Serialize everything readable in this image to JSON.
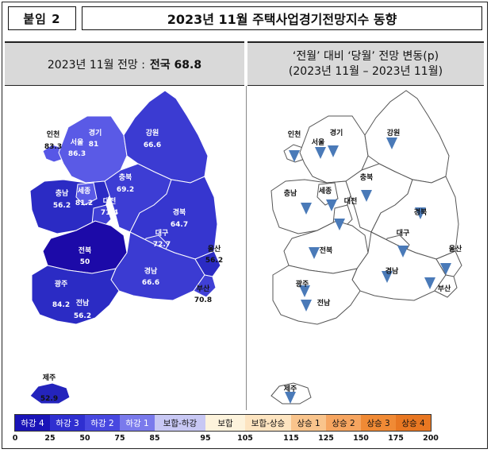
{
  "header": {
    "tag": "붙임 2",
    "title": "2023년 11월 주택사업경기전망지수 동향"
  },
  "left_panel": {
    "heading_prefix": "2023년 11월 전망 :",
    "heading_national": "전국 68.8"
  },
  "right_panel": {
    "heading_line1": "‘전월’ 대비 ‘당월’ 전망 변동(p)",
    "heading_line2": "(2023년 11월 – 2023년 11월)"
  },
  "regions": [
    {
      "key": "incheon",
      "name": "인천",
      "value": "83.3",
      "trend": "down",
      "color": "#5757e6"
    },
    {
      "key": "seoul",
      "name": "서울",
      "value": "86.3",
      "trend": "down",
      "color": "#7070e8"
    },
    {
      "key": "gyeonggi",
      "name": "경기",
      "value": "81",
      "trend": "down",
      "color": "#5a5ae6"
    },
    {
      "key": "gangwon",
      "name": "강원",
      "value": "66.6",
      "trend": "down",
      "color": "#3b3bd2"
    },
    {
      "key": "chungbuk",
      "name": "충북",
      "value": "69.2",
      "trend": "down",
      "color": "#3d3dd4"
    },
    {
      "key": "chungnam",
      "name": "충남",
      "value": "56.2",
      "trend": "down",
      "color": "#2b2bc4"
    },
    {
      "key": "sejong",
      "name": "세종",
      "value": "81.2",
      "trend": "down",
      "color": "#5a5ae6"
    },
    {
      "key": "daejeon",
      "name": "대전",
      "value": "71.4",
      "trend": "down",
      "color": "#4040d6"
    },
    {
      "key": "gyeongbuk",
      "name": "경북",
      "value": "64.7",
      "trend": "down",
      "color": "#3636cf"
    },
    {
      "key": "daegu",
      "name": "대구",
      "value": "72.7",
      "trend": "down",
      "color": "#4444d8"
    },
    {
      "key": "jeonbuk",
      "name": "전북",
      "value": "50",
      "trend": "down",
      "color": "#1c0aa8"
    },
    {
      "key": "gyeongnam",
      "name": "경남",
      "value": "66.6",
      "trend": "down",
      "color": "#3b3bd2"
    },
    {
      "key": "ulsan",
      "name": "울산",
      "value": "56.2",
      "trend": "down",
      "color": "#2b2bc4"
    },
    {
      "key": "busan",
      "name": "부산",
      "value": "70.8",
      "trend": "down",
      "color": "#4040d6"
    },
    {
      "key": "gwangju",
      "name": "광주",
      "value": "84.2",
      "trend": "down",
      "color": "#6060e8"
    },
    {
      "key": "jeonnam",
      "name": "전남",
      "value": "56.2",
      "trend": "down",
      "color": "#2b2bc4"
    },
    {
      "key": "jeju",
      "name": "제주",
      "value": "52.9",
      "trend": "down",
      "color": "#2424bc"
    }
  ],
  "legend": {
    "bins": [
      {
        "label": "하강 4",
        "color": "#1a14b8",
        "text_color": "#ffffff"
      },
      {
        "label": "하강 3",
        "color": "#2f2fd0",
        "text_color": "#ffffff"
      },
      {
        "label": "하강 2",
        "color": "#4848e0",
        "text_color": "#ffffff"
      },
      {
        "label": "하강 1",
        "color": "#7a7aec",
        "text_color": "#ffffff"
      },
      {
        "label": "보합-하강",
        "color": "#c8c8f4",
        "text_color": "#111111"
      },
      {
        "label": "보합",
        "color": "#fdf3dc",
        "text_color": "#111111"
      },
      {
        "label": "보합-상승",
        "color": "#fde4c0",
        "text_color": "#111111"
      },
      {
        "label": "상승 1",
        "color": "#f9c48c",
        "text_color": "#111111"
      },
      {
        "label": "상승 2",
        "color": "#f6a560",
        "text_color": "#111111"
      },
      {
        "label": "상승 3",
        "color": "#f08a35",
        "text_color": "#111111"
      },
      {
        "label": "상승 4",
        "color": "#e87722",
        "text_color": "#111111"
      }
    ],
    "ticks": [
      "0",
      "25",
      "50",
      "75",
      "85",
      "95",
      "105",
      "115",
      "125",
      "150",
      "175",
      "200"
    ]
  },
  "colors": {
    "arrow": "#4a7ab8",
    "outline_right": "#555555"
  }
}
